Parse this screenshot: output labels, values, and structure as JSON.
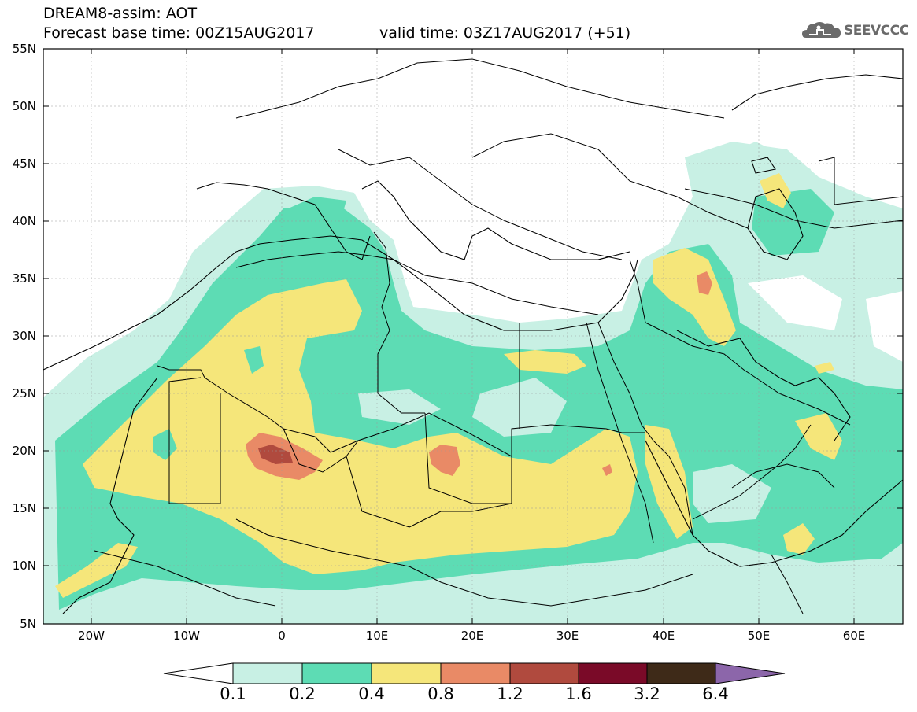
{
  "header": {
    "title": "DREAM8-assim: AOT",
    "forecast_base": "Forecast base time: 00Z15AUG2017",
    "valid_time": "valid time: 03Z17AUG2017 (+51)"
  },
  "logo": {
    "text": "SEEVCCC",
    "icon": "cloud-logo-icon"
  },
  "axes": {
    "lat_labels": [
      "55N",
      "50N",
      "45N",
      "40N",
      "35N",
      "30N",
      "25N",
      "20N",
      "15N",
      "10N",
      "5N"
    ],
    "lon_labels": [
      "20W",
      "10W",
      "0",
      "10E",
      "20E",
      "30E",
      "40E",
      "50E",
      "60E"
    ]
  },
  "colorbar": {
    "labels": [
      "0.1",
      "0.2",
      "0.4",
      "0.8",
      "1.2",
      "1.6",
      "3.2",
      "6.4"
    ],
    "colors": [
      "#ffffff",
      "#c8f0e4",
      "#5ddcb4",
      "#f5e67a",
      "#e98a66",
      "#b04a3e",
      "#7a0a28",
      "#3e2a18",
      "#8c66aa"
    ]
  },
  "map_colors": {
    "l1": "#c8f0e4",
    "l2": "#5ddcb4",
    "l3": "#f5e67a",
    "l4": "#e98a66",
    "l5": "#b04a3e",
    "border": "#000000"
  }
}
